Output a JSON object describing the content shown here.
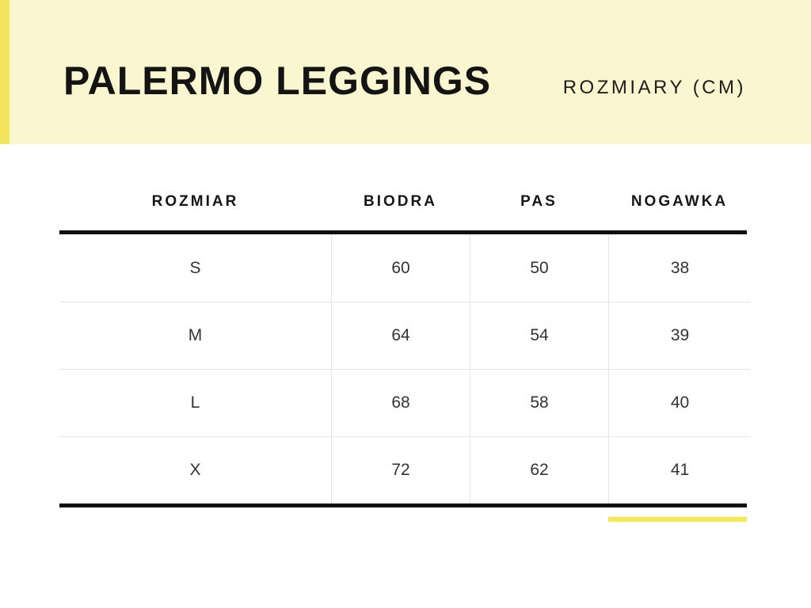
{
  "header": {
    "title": "PALERMO LEGGINGS",
    "subtitle": "ROZMIARY (CM)",
    "background_color": "#FAF6CF",
    "accent_stripe_color": "#F2E45C",
    "text_color": "#141414"
  },
  "size_table": {
    "columns": [
      "ROZMIAR",
      "BIODRA",
      "PAS",
      "NOGAWKA"
    ],
    "rows": [
      [
        "S",
        "60",
        "50",
        "38"
      ],
      [
        "M",
        "64",
        "54",
        "39"
      ],
      [
        "L",
        "68",
        "58",
        "40"
      ],
      [
        "X",
        "72",
        "62",
        "41"
      ]
    ],
    "rule_color": "#101010",
    "separator_color": "#E5E5E5",
    "accent_underline_color": "#F4EA4F"
  }
}
